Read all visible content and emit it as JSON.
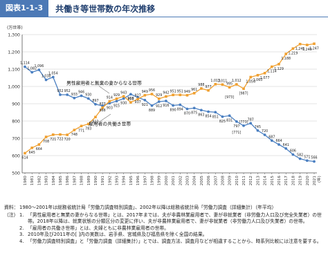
{
  "header": {
    "figure_label": "図表1-1-3",
    "title": "共働き等世帯数の年次推移"
  },
  "colors": {
    "header_accent": "#4c79b6",
    "series_dual": "#4a7fc1",
    "series_single": "#f0a030",
    "grid": "#c8c8c8"
  },
  "chart_data": {
    "type": "line",
    "y_unit": "(万世帯)",
    "x_unit": "(年)",
    "ylim": [
      500,
      1300
    ],
    "yticks": [
      500,
      600,
      700,
      800,
      900,
      1000,
      1100,
      1200,
      1300
    ],
    "grid": true,
    "x": [
      1980,
      1981,
      1982,
      1983,
      1984,
      1985,
      1986,
      1987,
      1988,
      1989,
      1990,
      1991,
      1992,
      1993,
      1994,
      1995,
      1996,
      1997,
      1998,
      1999,
      2000,
      2001,
      2002,
      2003,
      2004,
      2005,
      2006,
      2007,
      2008,
      2009,
      2010,
      2011,
      2012,
      2013,
      2014,
      2015,
      2016,
      2017,
      2018,
      2019,
      2020,
      2021
    ],
    "x_tick_labels": [
      "1980",
      "1981",
      "1982",
      "1983",
      "1984",
      "1985",
      "1986",
      "1987",
      "1988",
      "1989",
      "1990",
      "1991",
      "1992",
      "1993",
      "1994",
      "1995",
      "1996",
      "1997",
      "1998",
      "1999",
      "2000",
      "2001",
      "2002",
      "2003",
      "2004",
      "2005",
      "2006",
      "2007",
      "2008",
      "2009",
      "2010",
      "2011",
      "2012",
      "2013",
      "2014",
      "2015",
      "2016",
      "2017",
      "2018",
      "2019",
      "2020",
      "2021"
    ],
    "series": [
      {
        "name": "男性雇用者と無業の妻からなる世帯",
        "values": [
          1114,
          1082,
          1096,
          1038,
          1054,
          952,
          952,
          933,
          946,
          930,
          897,
          888,
          903,
          915,
          930,
          955,
          937,
          921,
          889,
          912,
          916,
          890,
          894,
          870,
          875,
          863,
          854,
          851,
          825,
          831,
          797,
          773,
          787,
          745,
          720,
          687,
          664,
          641,
          606,
          582,
          571,
          566
        ],
        "labels": [
          "1,114",
          "1,082",
          "1,096",
          "1,038",
          "1,054",
          "952",
          "952",
          "933",
          "946",
          "930",
          "897",
          "888",
          "903",
          "915",
          "930",
          "955",
          "937",
          "921",
          "889",
          "912",
          "916",
          "890",
          "894",
          "870",
          "875",
          "863",
          "854",
          "851",
          "825",
          "831",
          "797",
          "[773]",
          "787",
          "745",
          "720",
          "687",
          "664",
          "641",
          "606",
          "582",
          "571",
          "566"
        ]
      },
      {
        "name": "雇用者の共働き世帯",
        "values": [
          614,
          645,
          664,
          708,
          721,
          722,
          720,
          748,
          771,
          783,
          823,
          877,
          914,
          929,
          943,
          908,
          927,
          949,
          956,
          929,
          942,
          951,
          951,
          949,
          961,
          988,
          977,
          1013,
          1011,
          995,
          1012,
          987,
          1054,
          1065,
          1077,
          1114,
          1129,
          1188,
          1219,
          1245,
          1240,
          1247
        ],
        "labels": [
          "614",
          "645",
          "664",
          "708",
          "721",
          "722",
          "720",
          "748",
          "771",
          "783",
          "823",
          "877",
          "914",
          "929",
          "943",
          "908",
          "927",
          "949",
          "956",
          "929",
          "942",
          "951",
          "951",
          "949",
          "961",
          "988",
          "977",
          "1,013",
          "1,011",
          "995",
          "1,012",
          "[987]",
          "1,054",
          "1,065",
          "1,077",
          "1,114",
          "1,129",
          "1,188",
          "1,219",
          "1,245",
          "1,240",
          "1,247"
        ]
      }
    ],
    "extra_labels": [
      "[771]",
      "[973]"
    ]
  },
  "notes": {
    "source_head": "資料：",
    "source_text": "1980～2001年は総務省統計局「労働力調査特別調査」、2002年以降は総務省統計局「労働力調査（詳細集計）（年平均）",
    "notes_head": "（注）",
    "items": [
      {
        "num": "1.",
        "text": "「男性雇用者と無業の妻からなる世帯」とは、2017年までは、夫が非農林業雇用者で、妻が非就業者（非労働力人口及び完全失業者）の世帯。2018年以降は、就業状態の分類区分の変更に伴い、夫が非農林業雇用者で、妻が非就業者（非労働力人口及び失業者）の世帯。"
      },
      {
        "num": "2.",
        "text": "「雇用者の共働き世帯」とは、夫婦ともに非農林業雇用者の世帯。"
      },
      {
        "num": "3.",
        "text": "2010年及び2011年の[ ]内の実数は、岩手県、宮城県及び福島県を除く全国の結果。"
      },
      {
        "num": "4.",
        "text": "「労働力調査特別調査」と「労働力調査（詳細集計）」とでは、調査方法、調査月などが相違することから、時系列比較には注意を要する。"
      }
    ]
  }
}
